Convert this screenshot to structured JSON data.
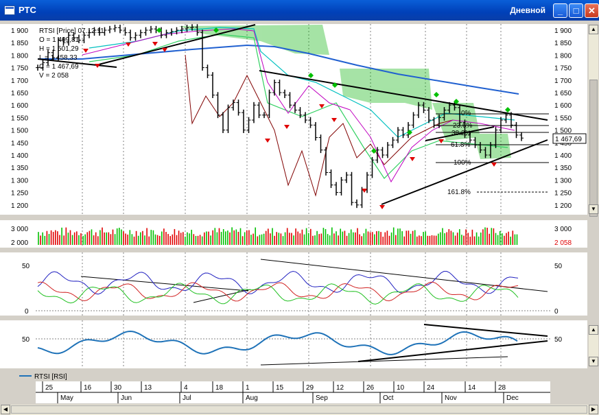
{
  "window": {
    "title": "РТС",
    "period": "Дневной",
    "minimize_label": "_",
    "maximize_label": "□",
    "close_label": "✕"
  },
  "colors": {
    "panel_bg": "#ffffff",
    "grid": "#808080",
    "price": "#000000",
    "up": "#00c000",
    "down": "#e00000",
    "ma_long": "#2060d0",
    "cloud": "#00b000"
  },
  "price_panel": {
    "info_lines": [
      "RTSI [Price] 07.12.11",
      "O = 1 499,81",
      "H = 1 501,29",
      "L = 1 458,33",
      "C = 1 467,69",
      "V = 2 058"
    ],
    "y_ticks": [
      "1 900",
      "1 850",
      "1 800",
      "1 750",
      "1 700",
      "1 650",
      "1 600",
      "1 550",
      "1 500",
      "1 450",
      "1 400",
      "1 350",
      "1 300",
      "1 250",
      "1 200"
    ],
    "last_value": "1 467,69",
    "fib_labels": [
      "0%",
      "23.6%",
      "38.2%",
      "61.8%",
      "100%",
      "161.8%"
    ]
  },
  "volume_panel": {
    "y_ticks": [
      "3 000",
      "2 000"
    ],
    "last_value": "2 058"
  },
  "osc_panel": {
    "y_ticks": [
      "50",
      "0"
    ]
  },
  "rsi_panel": {
    "y_ticks": [
      "50"
    ],
    "legend": "RTSI [RSI]"
  },
  "x_axis": {
    "day_ticks": [
      "25",
      "16",
      "30",
      "13",
      "4",
      "18",
      "1",
      "15",
      "29",
      "12",
      "26",
      "10",
      "24",
      "14",
      "28"
    ],
    "month_labels": [
      "May",
      "Jun",
      "Jul",
      "Aug",
      "Sep",
      "Oct",
      "Nov",
      "Dec"
    ]
  },
  "chart_data": {
    "type": "line",
    "title": "",
    "xlabel": "",
    "ylabel": "",
    "ylim": [
      1190,
      1920
    ],
    "series": [
      {
        "values": [
          1750,
          1770,
          1810,
          1790,
          1860,
          1850,
          1880,
          1870,
          1860,
          1880,
          1890,
          1900,
          1890,
          1900,
          1905,
          1910,
          1900,
          1890,
          1870,
          1880,
          1890,
          1900,
          1905,
          1900,
          1880,
          1890,
          1895,
          1900,
          1905,
          1910,
          1912,
          1890,
          1750,
          1720,
          1640,
          1560,
          1500,
          1590,
          1610,
          1570,
          1500,
          1540,
          1600,
          1560,
          1560,
          1650,
          1690,
          1650,
          1640,
          1600,
          1580,
          1560,
          1540,
          1520,
          1470,
          1420,
          1330,
          1280,
          1250,
          1300,
          1320,
          1210,
          1200,
          1260,
          1320,
          1380,
          1420,
          1400,
          1440,
          1460,
          1500,
          1480,
          1520,
          1560,
          1600,
          1580,
          1540,
          1520,
          1550,
          1580,
          1600,
          1590,
          1530,
          1480,
          1460,
          1440,
          1420,
          1400,
          1440,
          1500,
          1540,
          1560,
          1520,
          1480,
          1468
        ]
      }
    ]
  }
}
